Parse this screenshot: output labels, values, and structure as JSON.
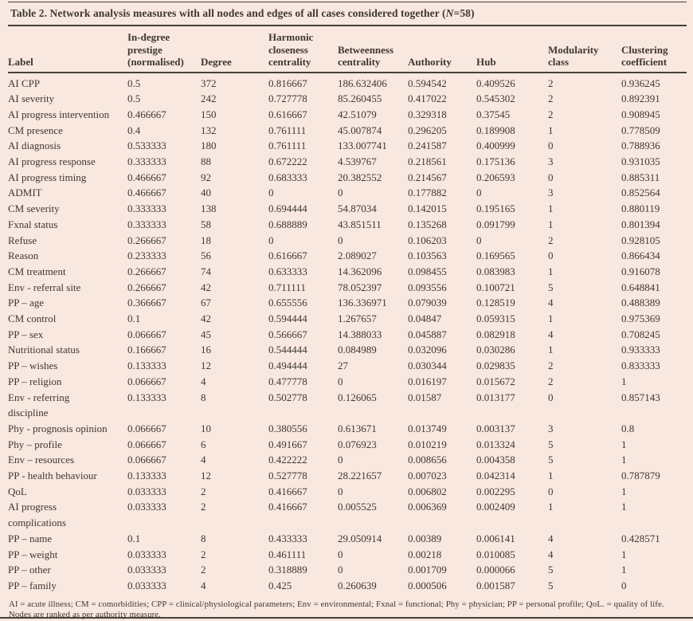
{
  "page": {
    "background_color": "#f9e8df",
    "text_color": "#3d3833",
    "rule_color": "#46413a"
  },
  "table": {
    "title": {
      "pre": "Table 2. Network analysis measures with all nodes and edges of all cases considered together (",
      "n_italic": "N",
      "post": "=58)"
    },
    "columns": [
      {
        "id": "label",
        "label": "Label"
      },
      {
        "id": "in-degree-prestige",
        "label": "In-degree\nprestige\n(normalised)"
      },
      {
        "id": "degree",
        "label": "Degree"
      },
      {
        "id": "harmonic-closeness-centrality",
        "label": "Harmonic\ncloseness\ncentrality"
      },
      {
        "id": "betweenness-centrality",
        "label": "Betweenness\ncentrality"
      },
      {
        "id": "authority",
        "label": "Authority"
      },
      {
        "id": "hub",
        "label": "Hub"
      },
      {
        "id": "modularity-class",
        "label": "Modularity\nclass"
      },
      {
        "id": "clustering-coefficient",
        "label": "Clustering\ncoefficient"
      }
    ],
    "rows": [
      [
        "AI CPP",
        "0.5",
        "372",
        "0.816667",
        "186.632406",
        "0.594542",
        "0.409526",
        "2",
        "0.936245"
      ],
      [
        "AI severity",
        "0.5",
        "242",
        "0.727778",
        "85.260455",
        "0.417022",
        "0.545302",
        "2",
        "0.892391"
      ],
      [
        "AI progress intervention",
        "0.466667",
        "150",
        "0.616667",
        "42.51079",
        "0.329318",
        "0.37545",
        "2",
        "0.908945"
      ],
      [
        "CM presence",
        "0.4",
        "132",
        "0.761111",
        "45.007874",
        "0.296205",
        "0.189908",
        "1",
        "0.778509"
      ],
      [
        "AI diagnosis",
        "0.533333",
        "180",
        "0.761111",
        "133.007741",
        "0.241587",
        "0.400999",
        "0",
        "0.788936"
      ],
      [
        "AI progress response",
        "0.333333",
        "88",
        "0.672222",
        "4.539767",
        "0.218561",
        "0.175136",
        "3",
        "0.931035"
      ],
      [
        "AI progress timing",
        "0.466667",
        "92",
        "0.683333",
        "20.382552",
        "0.214567",
        "0.206593",
        "0",
        "0.885311"
      ],
      [
        "ADMIT",
        "0.466667",
        "40",
        "0",
        "0",
        "0.177882",
        "0",
        "3",
        "0.852564"
      ],
      [
        "CM severity",
        "0.333333",
        "138",
        "0.694444",
        "54.87034",
        "0.142015",
        "0.195165",
        "1",
        "0.880119"
      ],
      [
        "Fxnal status",
        "0.333333",
        "58",
        "0.688889",
        "43.851511",
        "0.135268",
        "0.091799",
        "1",
        "0.801394"
      ],
      [
        "Refuse",
        "0.266667",
        "18",
        "0",
        "0",
        "0.106203",
        "0",
        "2",
        "0.928105"
      ],
      [
        "Reason",
        "0.233333",
        "56",
        "0.616667",
        "2.089027",
        "0.103563",
        "0.169565",
        "0",
        "0.866434"
      ],
      [
        "CM treatment",
        "0.266667",
        "74",
        "0.633333",
        "14.362096",
        "0.098455",
        "0.083983",
        "1",
        "0.916078"
      ],
      [
        "Env - referral site",
        "0.266667",
        "42",
        "0.711111",
        "78.052397",
        "0.093556",
        "0.100721",
        "5",
        "0.648841"
      ],
      [
        "PP – age",
        "0.366667",
        "67",
        "0.655556",
        "136.336971",
        "0.079039",
        "0.128519",
        "4",
        "0.488389"
      ],
      [
        "CM control",
        "0.1",
        "42",
        "0.594444",
        "1.267657",
        "0.04847",
        "0.059315",
        "1",
        "0.975369"
      ],
      [
        "PP – sex",
        "0.066667",
        "45",
        "0.566667",
        "14.388033",
        "0.045887",
        "0.082918",
        "4",
        "0.708245"
      ],
      [
        "Nutritional status",
        "0.166667",
        "16",
        "0.544444",
        "0.084989",
        "0.032096",
        "0.030286",
        "1",
        "0.933333"
      ],
      [
        "PP – wishes",
        "0.133333",
        "12",
        "0.494444",
        "27",
        "0.030344",
        "0.029835",
        "2",
        "0.833333"
      ],
      [
        "PP – religion",
        "0.066667",
        "4",
        "0.477778",
        "0",
        "0.016197",
        "0.015672",
        "2",
        "1"
      ],
      [
        "Env - referring\ndiscipline",
        "0.133333",
        "8",
        "0.502778",
        "0.126065",
        "0.01587",
        "0.013177",
        "0",
        "0.857143"
      ],
      [
        "Phy - prognosis opinion",
        "0.066667",
        "10",
        "0.380556",
        "0.613671",
        "0.013749",
        "0.003137",
        "3",
        "0.8"
      ],
      [
        "Phy – profile",
        "0.066667",
        "6",
        "0.491667",
        "0.076923",
        "0.010219",
        "0.013324",
        "5",
        "1"
      ],
      [
        "Env – resources",
        "0.066667",
        "4",
        "0.422222",
        "0",
        "0.008656",
        "0.004358",
        "5",
        "1"
      ],
      [
        "PP - health behaviour",
        "0.133333",
        "12",
        "0.527778",
        "28.221657",
        "0.007023",
        "0.042314",
        "1",
        "0.787879"
      ],
      [
        "QoL",
        "0.033333",
        "2",
        "0.416667",
        "0",
        "0.006802",
        "0.002295",
        "0",
        "1"
      ],
      [
        "AI progress\ncomplications",
        "0.033333",
        "2",
        "0.416667",
        "0.005525",
        "0.006369",
        "0.002409",
        "1",
        "1"
      ],
      [
        "PP – name",
        "0.1",
        "8",
        "0.433333",
        "29.050914",
        "0.00389",
        "0.006141",
        "4",
        "0.428571"
      ],
      [
        "PP – weight",
        "0.033333",
        "2",
        "0.461111",
        "0",
        "0.00218",
        "0.010085",
        "4",
        "1"
      ],
      [
        "PP – other",
        "0.033333",
        "2",
        "0.318889",
        "0",
        "0.001709",
        "0.000066",
        "5",
        "1"
      ],
      [
        "PP – family",
        "0.033333",
        "4",
        "0.425",
        "0.260639",
        "0.000506",
        "0.001587",
        "5",
        "0"
      ]
    ]
  },
  "footnotes": [
    "AI = acute illness; CM = comorbidities; CPP = clinical/physiological parameters; Env = environmental; Fxnal = functional; Phy = physician; PP = personal profile; QoL. = quality of life.",
    "Nodes are ranked as per authority measure."
  ]
}
